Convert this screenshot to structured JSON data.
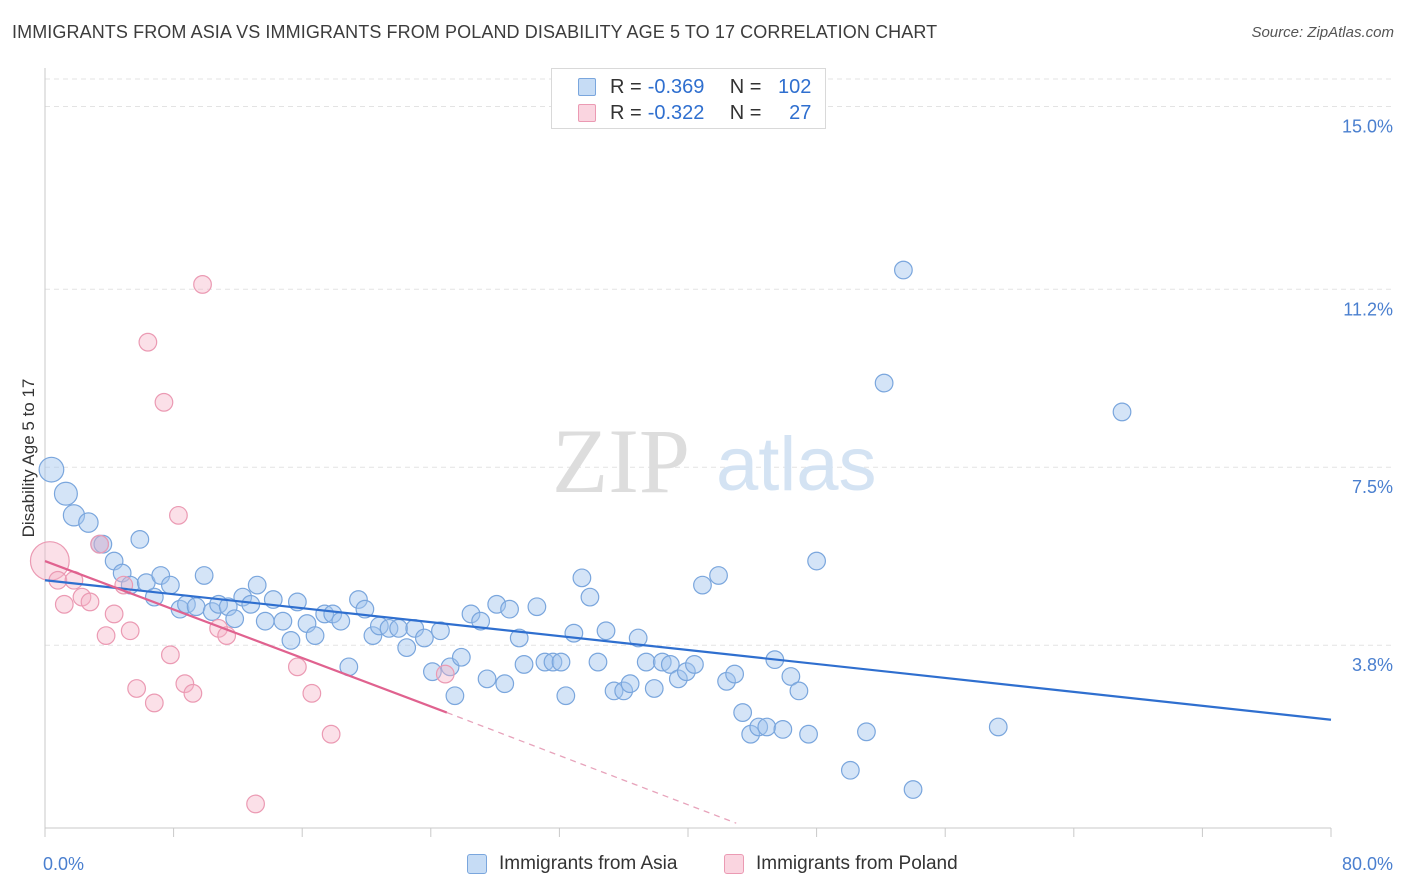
{
  "title": "IMMIGRANTS FROM ASIA VS IMMIGRANTS FROM POLAND DISABILITY AGE 5 TO 17 CORRELATION CHART",
  "source": "Source: ZipAtlas.com",
  "watermark": {
    "zip": "ZIP",
    "atlas": "atlas"
  },
  "stats_legend": [
    {
      "r_label": "R =",
      "r_value": "-0.369",
      "n_label": "N =",
      "n_value": "102",
      "color": "#7aa6dd"
    },
    {
      "r_label": "R =",
      "r_value": "-0.322",
      "n_label": "N =",
      "n_value": "27",
      "color": "#eb9ab3"
    }
  ],
  "chart_data": {
    "type": "scatter",
    "title": "IMMIGRANTS FROM ASIA VS IMMIGRANTS FROM POLAND DISABILITY AGE 5 TO 17 CORRELATION CHART",
    "xlabel": "",
    "ylabel": "Disability Age 5 to 17",
    "xlim": [
      0,
      80
    ],
    "ylim": [
      0,
      15.8
    ],
    "x_tick_labels": [
      "0.0%",
      "80.0%"
    ],
    "y_ticks": [
      3.8,
      7.5,
      11.2,
      15.0
    ],
    "y_tick_labels": [
      "3.8%",
      "7.5%",
      "11.2%",
      "15.0%"
    ],
    "grid": true,
    "legend_position": "top-center",
    "series": [
      {
        "name": "Immigrants from Asia",
        "color": "#7aa6dd",
        "trend": {
          "x": [
            0,
            80
          ],
          "y": [
            5.15,
            2.25
          ]
        },
        "points": [
          [
            0.4,
            7.45,
            1.4
          ],
          [
            1.3,
            6.95,
            1.3
          ],
          [
            1.8,
            6.5,
            1.2
          ],
          [
            2.7,
            6.35,
            1.1
          ],
          [
            3.4,
            5.9,
            1.0
          ],
          [
            3.6,
            5.9,
            1.0
          ],
          [
            4.3,
            5.55,
            1.0
          ],
          [
            4.8,
            5.3,
            1.0
          ],
          [
            5.3,
            5.05,
            1.0
          ],
          [
            5.9,
            6.0,
            1.0
          ],
          [
            6.3,
            5.1,
            1.0
          ],
          [
            6.8,
            4.8,
            1.0
          ],
          [
            7.2,
            5.25,
            1.0
          ],
          [
            7.8,
            5.05,
            1.0
          ],
          [
            8.4,
            4.55,
            1.0
          ],
          [
            8.8,
            4.65,
            1.0
          ],
          [
            9.4,
            4.6,
            1.0
          ],
          [
            9.9,
            5.25,
            1.0
          ],
          [
            10.4,
            4.5,
            1.0
          ],
          [
            10.8,
            4.65,
            1.0
          ],
          [
            11.4,
            4.6,
            1.0
          ],
          [
            11.8,
            4.35,
            1.0
          ],
          [
            12.3,
            4.8,
            1.0
          ],
          [
            12.8,
            4.65,
            1.0
          ],
          [
            13.2,
            5.05,
            1.0
          ],
          [
            13.7,
            4.3,
            1.0
          ],
          [
            14.2,
            4.75,
            1.0
          ],
          [
            14.8,
            4.3,
            1.0
          ],
          [
            15.3,
            3.9,
            1.0
          ],
          [
            15.7,
            4.7,
            1.0
          ],
          [
            16.3,
            4.25,
            1.0
          ],
          [
            16.8,
            4.0,
            1.0
          ],
          [
            17.4,
            4.45,
            1.0
          ],
          [
            17.9,
            4.45,
            1.0
          ],
          [
            18.4,
            4.3,
            1.0
          ],
          [
            18.9,
            3.35,
            1.0
          ],
          [
            19.5,
            4.75,
            1.0
          ],
          [
            19.9,
            4.55,
            1.0
          ],
          [
            20.4,
            4.0,
            1.0
          ],
          [
            20.8,
            4.2,
            1.0
          ],
          [
            21.4,
            4.15,
            1.0
          ],
          [
            22.0,
            4.15,
            1.0
          ],
          [
            22.5,
            3.75,
            1.0
          ],
          [
            23.0,
            4.15,
            1.0
          ],
          [
            23.6,
            3.95,
            1.0
          ],
          [
            24.1,
            3.25,
            1.0
          ],
          [
            24.6,
            4.1,
            1.0
          ],
          [
            25.2,
            3.35,
            1.0
          ],
          [
            25.5,
            2.75,
            1.0
          ],
          [
            25.9,
            3.55,
            1.0
          ],
          [
            26.5,
            4.45,
            1.0
          ],
          [
            27.1,
            4.3,
            1.0
          ],
          [
            27.5,
            3.1,
            1.0
          ],
          [
            28.1,
            4.65,
            1.0
          ],
          [
            28.6,
            3.0,
            1.0
          ],
          [
            28.9,
            4.55,
            1.0
          ],
          [
            29.5,
            3.95,
            1.0
          ],
          [
            29.8,
            3.4,
            1.0
          ],
          [
            30.6,
            4.6,
            1.0
          ],
          [
            31.1,
            3.45,
            1.0
          ],
          [
            31.6,
            3.45,
            1.0
          ],
          [
            32.1,
            3.45,
            1.0
          ],
          [
            32.4,
            2.75,
            1.0
          ],
          [
            32.9,
            4.05,
            1.0
          ],
          [
            33.4,
            5.2,
            1.0
          ],
          [
            33.9,
            4.8,
            1.0
          ],
          [
            34.4,
            3.45,
            1.0
          ],
          [
            34.9,
            4.1,
            1.0
          ],
          [
            35.4,
            2.85,
            1.0
          ],
          [
            36.0,
            2.85,
            1.0
          ],
          [
            36.4,
            3.0,
            1.0
          ],
          [
            36.9,
            3.95,
            1.0
          ],
          [
            37.4,
            3.45,
            1.0
          ],
          [
            37.9,
            2.9,
            1.0
          ],
          [
            38.4,
            3.45,
            1.0
          ],
          [
            38.9,
            3.4,
            1.0
          ],
          [
            39.4,
            3.1,
            1.0
          ],
          [
            39.9,
            3.25,
            1.0
          ],
          [
            40.4,
            3.4,
            1.0
          ],
          [
            40.9,
            5.05,
            1.0
          ],
          [
            41.9,
            5.25,
            1.0
          ],
          [
            42.4,
            3.05,
            1.0
          ],
          [
            42.9,
            3.2,
            1.0
          ],
          [
            43.4,
            2.4,
            1.0
          ],
          [
            43.9,
            1.95,
            1.0
          ],
          [
            44.4,
            2.1,
            1.0
          ],
          [
            44.9,
            2.1,
            1.0
          ],
          [
            45.4,
            3.5,
            1.0
          ],
          [
            45.9,
            2.05,
            1.0
          ],
          [
            46.4,
            3.15,
            1.0
          ],
          [
            46.9,
            2.85,
            1.0
          ],
          [
            47.5,
            1.95,
            1.0
          ],
          [
            48.0,
            5.55,
            1.0
          ],
          [
            50.1,
            1.2,
            1.0
          ],
          [
            51.1,
            2.0,
            1.0
          ],
          [
            52.2,
            9.25,
            1.0
          ],
          [
            53.4,
            11.6,
            1.0
          ],
          [
            54.0,
            0.8,
            1.0
          ],
          [
            59.3,
            2.1,
            1.0
          ],
          [
            67.0,
            8.65,
            1.0
          ]
        ]
      },
      {
        "name": "Immigrants from Poland",
        "color": "#eb9ab3",
        "trend": {
          "x": [
            0,
            25.0
          ],
          "y": [
            5.55,
            2.4
          ]
        },
        "trend_extension": {
          "x": [
            25.0,
            43.0
          ],
          "y": [
            2.4,
            0.1
          ]
        },
        "points": [
          [
            0.3,
            5.55,
            2.2
          ],
          [
            0.8,
            5.15,
            1.0
          ],
          [
            1.2,
            4.65,
            1.0
          ],
          [
            1.8,
            5.15,
            1.0
          ],
          [
            2.3,
            4.8,
            1.0
          ],
          [
            2.8,
            4.7,
            1.0
          ],
          [
            3.4,
            5.9,
            1.0
          ],
          [
            3.8,
            4.0,
            1.0
          ],
          [
            4.3,
            4.45,
            1.0
          ],
          [
            4.9,
            5.05,
            1.0
          ],
          [
            5.3,
            4.1,
            1.0
          ],
          [
            5.7,
            2.9,
            1.0
          ],
          [
            6.4,
            10.1,
            1.0
          ],
          [
            6.8,
            2.6,
            1.0
          ],
          [
            7.4,
            8.85,
            1.0
          ],
          [
            7.8,
            3.6,
            1.0
          ],
          [
            8.3,
            6.5,
            1.0
          ],
          [
            8.7,
            3.0,
            1.0
          ],
          [
            9.2,
            2.8,
            1.0
          ],
          [
            9.8,
            11.3,
            1.0
          ],
          [
            10.8,
            4.15,
            1.0
          ],
          [
            11.3,
            4.0,
            1.0
          ],
          [
            13.1,
            0.5,
            1.0
          ],
          [
            15.7,
            3.35,
            1.0
          ],
          [
            16.6,
            2.8,
            1.0
          ],
          [
            17.8,
            1.95,
            1.0
          ],
          [
            24.9,
            3.2,
            1.0
          ]
        ]
      }
    ]
  }
}
